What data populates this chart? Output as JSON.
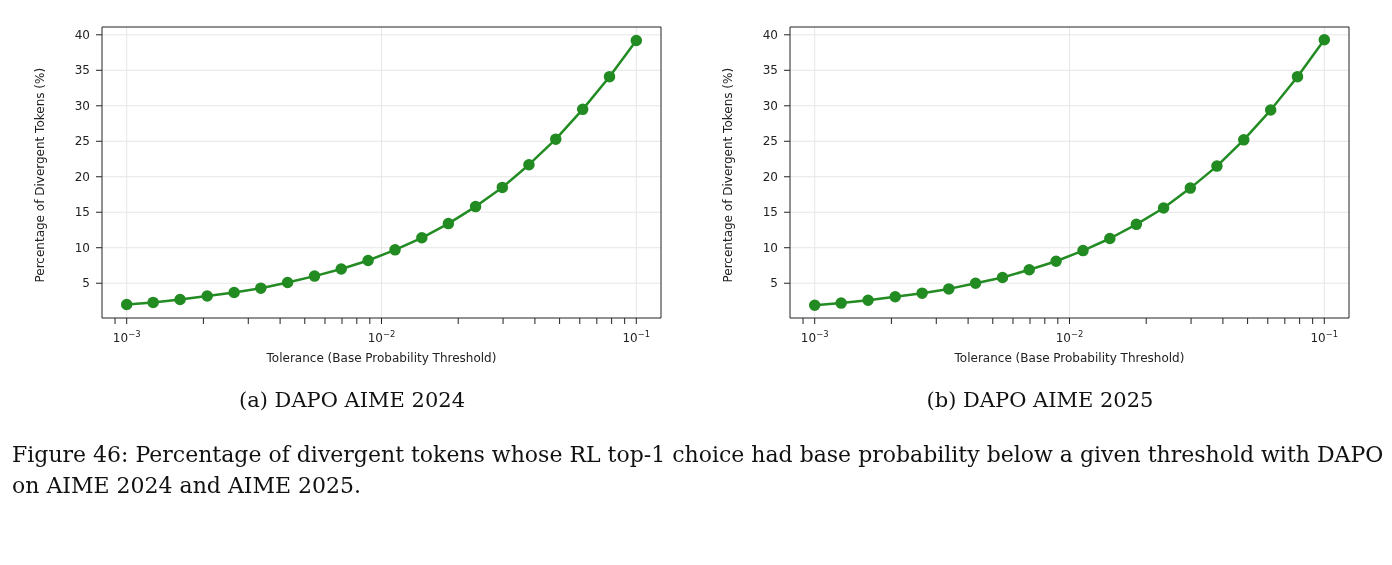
{
  "chart_data": [
    {
      "type": "line",
      "title": "(a) DAPO AIME 2024",
      "xlabel": "Tolerance (Base Probability Threshold)",
      "ylabel": "Percentage of Divergent Tokens (%)",
      "log": "x",
      "grid": true,
      "marker": "circle",
      "line_style": "solid",
      "x": [
        0.001,
        0.00127,
        0.00162,
        0.00207,
        0.00264,
        0.00336,
        0.00428,
        0.00546,
        0.00695,
        0.00886,
        0.0113,
        0.0144,
        0.0183,
        0.0234,
        0.0298,
        0.0379,
        0.0483,
        0.0616,
        0.0785,
        0.1
      ],
      "series": [
        {
          "color": "#228b22",
          "values": [
            2.0,
            2.3,
            2.7,
            3.2,
            3.7,
            4.3,
            5.1,
            6.0,
            7.0,
            8.2,
            9.7,
            11.4,
            13.4,
            15.8,
            18.5,
            21.7,
            25.3,
            29.5,
            34.1,
            39.2
          ]
        }
      ],
      "xlim": [
        0.0008,
        0.125
      ],
      "ylim": [
        0.1,
        41.1
      ],
      "xticks": [
        {
          "value": 0.0009,
          "label": null
        },
        {
          "value": 0.001,
          "label": "10$^{−3}$"
        },
        {
          "value": 0.002,
          "label": null
        },
        {
          "value": 0.003,
          "label": null
        },
        {
          "value": 0.004,
          "label": null
        },
        {
          "value": 0.005,
          "label": null
        },
        {
          "value": 0.006,
          "label": null
        },
        {
          "value": 0.007,
          "label": null
        },
        {
          "value": 0.008,
          "label": null
        },
        {
          "value": 0.009,
          "label": null
        },
        {
          "value": 0.01,
          "label": "10$^{−2}$"
        },
        {
          "value": 0.02,
          "label": null
        },
        {
          "value": 0.03,
          "label": null
        },
        {
          "value": 0.04,
          "label": null
        },
        {
          "value": 0.05,
          "label": null
        },
        {
          "value": 0.06,
          "label": null
        },
        {
          "value": 0.07,
          "label": null
        },
        {
          "value": 0.08,
          "label": null
        },
        {
          "value": 0.09,
          "label": null
        },
        {
          "value": 0.1,
          "label": "10$^{−1}$"
        }
      ],
      "yticks": [
        5,
        10,
        15,
        20,
        25,
        30,
        35,
        40
      ],
      "annotations": [
        "Figure 46: Percentage of divergent tokens whose RL top-1 choice had base probability below a given threshold with DAPO on AIME 2024 and AIME 2025."
      ]
    },
    {
      "type": "line",
      "title": "(b) DAPO AIME 2025",
      "xlabel": "Tolerance (Base Probability Threshold)",
      "ylabel": "Percentage of Divergent Tokens (%)",
      "log": "x",
      "grid": true,
      "marker": "circle",
      "line_style": "solid",
      "x": [
        0.001,
        0.00127,
        0.00162,
        0.00207,
        0.00264,
        0.00336,
        0.00428,
        0.00546,
        0.00695,
        0.00886,
        0.0113,
        0.0144,
        0.0183,
        0.0234,
        0.0298,
        0.0379,
        0.0483,
        0.0616,
        0.0785,
        0.1
      ],
      "series": [
        {
          "color": "#228b22",
          "values": [
            1.9,
            2.2,
            2.6,
            3.1,
            3.6,
            4.2,
            5.0,
            5.8,
            6.9,
            8.1,
            9.6,
            11.3,
            13.3,
            15.6,
            18.4,
            21.5,
            25.2,
            29.4,
            34.1,
            39.3
          ]
        }
      ],
      "xlim": [
        0.0008,
        0.125
      ],
      "ylim": [
        0.1,
        41.1
      ],
      "xticks": [
        {
          "value": 0.0009,
          "label": null
        },
        {
          "value": 0.001,
          "label": "10$^{−3}$"
        },
        {
          "value": 0.002,
          "label": null
        },
        {
          "value": 0.003,
          "label": null
        },
        {
          "value": 0.004,
          "label": null
        },
        {
          "value": 0.005,
          "label": null
        },
        {
          "value": 0.006,
          "label": null
        },
        {
          "value": 0.007,
          "label": null
        },
        {
          "value": 0.008,
          "label": null
        },
        {
          "value": 0.009,
          "label": null
        },
        {
          "value": 0.01,
          "label": "10$^{−2}$"
        },
        {
          "value": 0.02,
          "label": null
        },
        {
          "value": 0.03,
          "label": null
        },
        {
          "value": 0.04,
          "label": null
        },
        {
          "value": 0.05,
          "label": null
        },
        {
          "value": 0.06,
          "label": null
        },
        {
          "value": 0.07,
          "label": null
        },
        {
          "value": 0.08,
          "label": null
        },
        {
          "value": 0.09,
          "label": null
        },
        {
          "value": 0.1,
          "label": "10$^{−1}$"
        }
      ],
      "yticks": [
        5,
        10,
        15,
        20,
        25,
        30,
        35,
        40
      ]
    }
  ]
}
